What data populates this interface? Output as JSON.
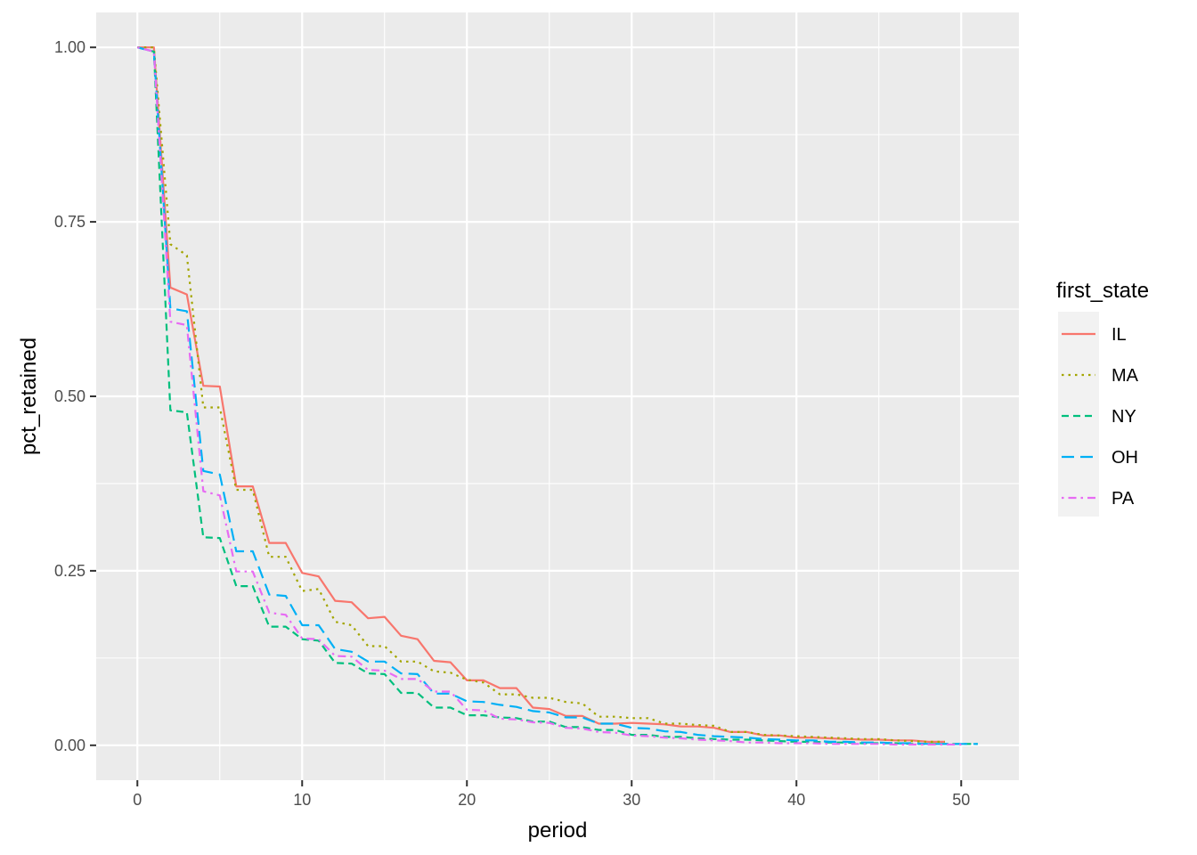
{
  "chart_data": {
    "type": "line",
    "xlabel": "period",
    "ylabel": "pct_retained",
    "xlim": [
      -2.5,
      53.5
    ],
    "ylim": [
      -0.05,
      1.05
    ],
    "x_ticks": [
      0,
      10,
      20,
      30,
      40,
      50
    ],
    "y_ticks": [
      0,
      0.25,
      0.5,
      0.75,
      1.0
    ],
    "x_tick_labels": [
      "0",
      "10",
      "20",
      "30",
      "40",
      "50"
    ],
    "y_tick_labels": [
      "0.00",
      "0.25",
      "0.50",
      "0.75",
      "1.00"
    ],
    "grid": true,
    "legend": {
      "title": "first_state",
      "position": "right"
    },
    "series": [
      {
        "name": "IL",
        "color": "#F8766D",
        "dash": "solid",
        "x": [
          0,
          1,
          2,
          3,
          4,
          5,
          6,
          7,
          8,
          9,
          10,
          11,
          12,
          13,
          14,
          15,
          16,
          17,
          18,
          19,
          20,
          21,
          22,
          23,
          24,
          25,
          26,
          27,
          28,
          29,
          30,
          31,
          32,
          33,
          34,
          35,
          36,
          37,
          38,
          39,
          40,
          41,
          42,
          43,
          44,
          45,
          46,
          47,
          48,
          49
        ],
        "y": [
          1.0,
          1.0,
          0.656,
          0.646,
          0.515,
          0.514,
          0.371,
          0.371,
          0.29,
          0.29,
          0.247,
          0.242,
          0.207,
          0.205,
          0.182,
          0.184,
          0.157,
          0.152,
          0.121,
          0.119,
          0.093,
          0.093,
          0.082,
          0.082,
          0.054,
          0.052,
          0.042,
          0.042,
          0.031,
          0.031,
          0.032,
          0.031,
          0.03,
          0.027,
          0.027,
          0.025,
          0.019,
          0.019,
          0.014,
          0.014,
          0.011,
          0.011,
          0.01,
          0.009,
          0.008,
          0.008,
          0.007,
          0.007,
          0.005,
          0.005
        ]
      },
      {
        "name": "MA",
        "color": "#A3A500",
        "dash": "dotted",
        "x": [
          0,
          1,
          2,
          3,
          4,
          5,
          6,
          7,
          8,
          9,
          10,
          11,
          12,
          13,
          14,
          15,
          16,
          17,
          18,
          19,
          20,
          21,
          22,
          23,
          24,
          25,
          26,
          27,
          28,
          29,
          30,
          31,
          32,
          33,
          34,
          35,
          36,
          37,
          38,
          39,
          40,
          41,
          42,
          43,
          44,
          45,
          46,
          47,
          48,
          49
        ],
        "y": [
          1.0,
          1.0,
          0.718,
          0.702,
          0.484,
          0.484,
          0.366,
          0.366,
          0.27,
          0.27,
          0.221,
          0.224,
          0.177,
          0.172,
          0.142,
          0.142,
          0.12,
          0.12,
          0.106,
          0.104,
          0.094,
          0.09,
          0.073,
          0.073,
          0.068,
          0.068,
          0.062,
          0.06,
          0.041,
          0.041,
          0.039,
          0.039,
          0.031,
          0.031,
          0.029,
          0.028,
          0.019,
          0.019,
          0.015,
          0.014,
          0.013,
          0.012,
          0.011,
          0.01,
          0.009,
          0.009,
          0.007,
          0.006,
          0.005,
          0.005
        ]
      },
      {
        "name": "NY",
        "color": "#00BF7D",
        "dash": "dashed",
        "x": [
          0,
          1,
          2,
          3,
          4,
          5,
          6,
          7,
          8,
          9,
          10,
          11,
          12,
          13,
          14,
          15,
          16,
          17,
          18,
          19,
          20,
          21,
          22,
          23,
          24,
          25,
          26,
          27,
          28,
          29,
          30,
          31,
          32,
          33,
          34,
          35,
          36,
          37,
          38,
          39,
          40,
          41,
          42,
          43,
          44,
          45,
          46,
          47,
          48,
          49,
          50,
          51
        ],
        "y": [
          1.0,
          0.994,
          0.48,
          0.477,
          0.298,
          0.297,
          0.228,
          0.228,
          0.17,
          0.17,
          0.152,
          0.15,
          0.118,
          0.117,
          0.103,
          0.102,
          0.075,
          0.075,
          0.054,
          0.054,
          0.043,
          0.043,
          0.04,
          0.039,
          0.034,
          0.034,
          0.026,
          0.026,
          0.022,
          0.022,
          0.015,
          0.015,
          0.012,
          0.012,
          0.01,
          0.009,
          0.008,
          0.008,
          0.007,
          0.006,
          0.005,
          0.005,
          0.004,
          0.004,
          0.003,
          0.003,
          0.003,
          0.002,
          0.002,
          0.002,
          0.002,
          0.002
        ]
      },
      {
        "name": "OH",
        "color": "#00B0F6",
        "dash": "longdash",
        "x": [
          0,
          1,
          2,
          3,
          4,
          5,
          6,
          7,
          8,
          9,
          10,
          11,
          12,
          13,
          14,
          15,
          16,
          17,
          18,
          19,
          20,
          21,
          22,
          23,
          24,
          25,
          26,
          27,
          28,
          29,
          30,
          31,
          32,
          33,
          34,
          35,
          36,
          37,
          38,
          39,
          40,
          41,
          42,
          43,
          44,
          45,
          46,
          47,
          48,
          49,
          50,
          51
        ],
        "y": [
          1.0,
          0.994,
          0.626,
          0.622,
          0.393,
          0.388,
          0.278,
          0.278,
          0.216,
          0.214,
          0.172,
          0.172,
          0.138,
          0.134,
          0.12,
          0.12,
          0.103,
          0.102,
          0.074,
          0.074,
          0.063,
          0.062,
          0.058,
          0.055,
          0.049,
          0.047,
          0.04,
          0.04,
          0.031,
          0.031,
          0.025,
          0.024,
          0.02,
          0.019,
          0.015,
          0.013,
          0.012,
          0.011,
          0.009,
          0.008,
          0.007,
          0.007,
          0.005,
          0.005,
          0.004,
          0.004,
          0.003,
          0.003,
          0.002,
          0.002,
          0.002,
          0.002
        ]
      },
      {
        "name": "PA",
        "color": "#E76BF3",
        "dash": "dotdash",
        "x": [
          0,
          1,
          2,
          3,
          4,
          5,
          6,
          7,
          8,
          9,
          10,
          11,
          12,
          13,
          14,
          15,
          16,
          17,
          18,
          19,
          20,
          21,
          22,
          23,
          24,
          25,
          26,
          27,
          28,
          29,
          30,
          31,
          32,
          33,
          34,
          35,
          36,
          37,
          38,
          39,
          40,
          41,
          42,
          43,
          44,
          45,
          46,
          47,
          48,
          49,
          50
        ],
        "y": [
          1.0,
          0.994,
          0.607,
          0.602,
          0.364,
          0.358,
          0.249,
          0.249,
          0.19,
          0.187,
          0.153,
          0.152,
          0.128,
          0.127,
          0.108,
          0.107,
          0.095,
          0.095,
          0.077,
          0.077,
          0.051,
          0.05,
          0.038,
          0.037,
          0.033,
          0.032,
          0.025,
          0.024,
          0.019,
          0.018,
          0.014,
          0.013,
          0.011,
          0.01,
          0.008,
          0.007,
          0.006,
          0.004,
          0.004,
          0.003,
          0.003,
          0.003,
          0.002,
          0.002,
          0.002,
          0.002,
          0.001,
          0.001,
          0.001,
          0.001,
          0.001
        ]
      }
    ]
  }
}
